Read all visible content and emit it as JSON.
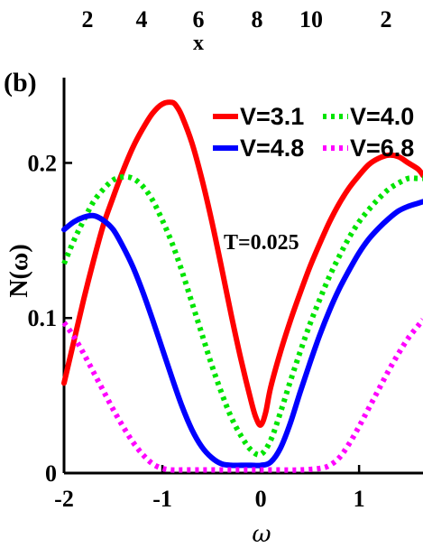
{
  "top_strip": {
    "ticks_left": [
      "2",
      "4",
      "6",
      "8",
      "10"
    ],
    "tick_right": "2",
    "xlabel": "x"
  },
  "chart_data": {
    "type": "line",
    "panel_label": "(b)",
    "xlabel": "ω",
    "ylabel": "N(ω)",
    "xlim": [
      -2,
      1.65
    ],
    "ylim": [
      0,
      0.255
    ],
    "xticks": [
      -2,
      -1,
      0,
      1
    ],
    "yticks": [
      0,
      0.1,
      0.2
    ],
    "xtick_labels": [
      "-2",
      "-1",
      "0",
      "1"
    ],
    "ytick_labels": [
      "0",
      "0.1",
      "0.2"
    ],
    "annotation": "T=0.025",
    "legend_placement": "top-right",
    "grid": false,
    "series": [
      {
        "name": "V=3.1",
        "color": "#ff0000",
        "style": "solid",
        "x": [
          -2.0,
          -1.9,
          -1.8,
          -1.7,
          -1.6,
          -1.5,
          -1.4,
          -1.3,
          -1.2,
          -1.1,
          -1.0,
          -0.9,
          -0.85,
          -0.8,
          -0.7,
          -0.6,
          -0.5,
          -0.4,
          -0.3,
          -0.2,
          -0.1,
          -0.05,
          0.0,
          0.05,
          0.1,
          0.2,
          0.3,
          0.4,
          0.5,
          0.6,
          0.7,
          0.8,
          0.9,
          1.0,
          1.1,
          1.2,
          1.3,
          1.4,
          1.5,
          1.6,
          1.65
        ],
        "y": [
          0.058,
          0.085,
          0.112,
          0.137,
          0.16,
          0.178,
          0.195,
          0.21,
          0.222,
          0.232,
          0.238,
          0.239,
          0.236,
          0.23,
          0.213,
          0.19,
          0.163,
          0.133,
          0.102,
          0.073,
          0.047,
          0.036,
          0.031,
          0.039,
          0.055,
          0.078,
          0.098,
          0.116,
          0.133,
          0.148,
          0.162,
          0.174,
          0.184,
          0.192,
          0.199,
          0.203,
          0.205,
          0.204,
          0.2,
          0.196,
          0.192
        ]
      },
      {
        "name": "V=4.0",
        "color": "#00e400",
        "style": "dotted",
        "x": [
          -2.0,
          -1.9,
          -1.8,
          -1.7,
          -1.6,
          -1.5,
          -1.4,
          -1.3,
          -1.2,
          -1.1,
          -1.0,
          -0.9,
          -0.8,
          -0.7,
          -0.6,
          -0.5,
          -0.4,
          -0.3,
          -0.2,
          -0.1,
          0.0,
          0.1,
          0.2,
          0.3,
          0.4,
          0.5,
          0.6,
          0.7,
          0.8,
          0.9,
          1.0,
          1.1,
          1.2,
          1.3,
          1.4,
          1.5,
          1.6,
          1.65
        ],
        "y": [
          0.135,
          0.15,
          0.163,
          0.175,
          0.183,
          0.189,
          0.191,
          0.19,
          0.185,
          0.176,
          0.163,
          0.148,
          0.13,
          0.11,
          0.09,
          0.07,
          0.052,
          0.036,
          0.024,
          0.015,
          0.012,
          0.021,
          0.039,
          0.059,
          0.078,
          0.096,
          0.112,
          0.127,
          0.14,
          0.152,
          0.162,
          0.17,
          0.177,
          0.183,
          0.187,
          0.19,
          0.19,
          0.19
        ]
      },
      {
        "name": "V=4.8",
        "color": "#0000ff",
        "style": "solid",
        "x": [
          -2.0,
          -1.9,
          -1.8,
          -1.7,
          -1.6,
          -1.5,
          -1.4,
          -1.3,
          -1.2,
          -1.1,
          -1.0,
          -0.9,
          -0.8,
          -0.7,
          -0.6,
          -0.5,
          -0.4,
          -0.3,
          -0.2,
          -0.1,
          0.0,
          0.1,
          0.2,
          0.3,
          0.4,
          0.5,
          0.6,
          0.7,
          0.8,
          0.9,
          1.0,
          1.1,
          1.2,
          1.3,
          1.4,
          1.5,
          1.6,
          1.65
        ],
        "y": [
          0.157,
          0.162,
          0.165,
          0.166,
          0.163,
          0.157,
          0.146,
          0.133,
          0.117,
          0.099,
          0.08,
          0.061,
          0.043,
          0.028,
          0.017,
          0.01,
          0.006,
          0.005,
          0.005,
          0.005,
          0.005,
          0.007,
          0.016,
          0.032,
          0.052,
          0.071,
          0.089,
          0.105,
          0.119,
          0.131,
          0.142,
          0.151,
          0.158,
          0.164,
          0.169,
          0.172,
          0.174,
          0.175
        ]
      },
      {
        "name": "V=6.8",
        "color": "#ff00ff",
        "style": "dotted",
        "x": [
          -2.0,
          -1.9,
          -1.8,
          -1.7,
          -1.6,
          -1.5,
          -1.4,
          -1.3,
          -1.2,
          -1.1,
          -1.0,
          -0.9,
          -0.8,
          -0.6,
          -0.4,
          -0.2,
          0.0,
          0.2,
          0.4,
          0.6,
          0.7,
          0.8,
          0.9,
          1.0,
          1.1,
          1.2,
          1.3,
          1.4,
          1.5,
          1.6,
          1.65
        ],
        "y": [
          0.097,
          0.088,
          0.077,
          0.065,
          0.053,
          0.041,
          0.03,
          0.02,
          0.012,
          0.006,
          0.003,
          0.002,
          0.002,
          0.002,
          0.002,
          0.002,
          0.002,
          0.002,
          0.002,
          0.003,
          0.005,
          0.01,
          0.019,
          0.03,
          0.042,
          0.054,
          0.066,
          0.077,
          0.087,
          0.095,
          0.099
        ]
      }
    ]
  }
}
